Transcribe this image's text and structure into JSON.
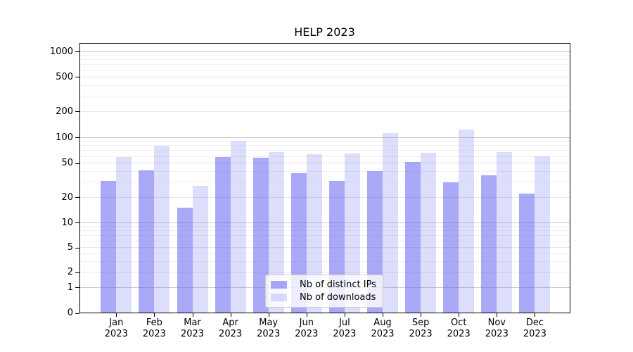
{
  "chart_data": {
    "type": "bar",
    "title": "HELP 2023",
    "months": [
      "Jan",
      "Feb",
      "Mar",
      "Apr",
      "May",
      "Jun",
      "Jul",
      "Aug",
      "Sep",
      "Oct",
      "Nov",
      "Dec"
    ],
    "year": "2023",
    "series": [
      {
        "name": "Nb of distinct IPs",
        "values": [
          31,
          41,
          15,
          59,
          58,
          38,
          31,
          40,
          52,
          30,
          36,
          22
        ],
        "color": "rgba(98,98,240,0.55)"
      },
      {
        "name": "Nb of downloads",
        "values": [
          59,
          80,
          27,
          91,
          67,
          64,
          65,
          112,
          66,
          124,
          67,
          60
        ],
        "color": "rgba(98,98,240,0.22)"
      }
    ],
    "yticks": [
      0,
      1,
      2,
      5,
      10,
      20,
      50,
      100,
      200,
      500,
      1000
    ],
    "yscale": "symlog",
    "ylim": [
      0,
      1260
    ],
    "xlabel": "",
    "ylabel": "",
    "grid": true,
    "legend_position": "lower center",
    "colors": {
      "bar_base": "#6262f0",
      "major_grid": "#c9c9c9",
      "mid_grid": "#e6e6e6",
      "minor_grid": "#f2f2f2",
      "spine": "#000000",
      "text": "#000000",
      "legend_border": "#cccccc",
      "background": "#ffffff"
    }
  }
}
